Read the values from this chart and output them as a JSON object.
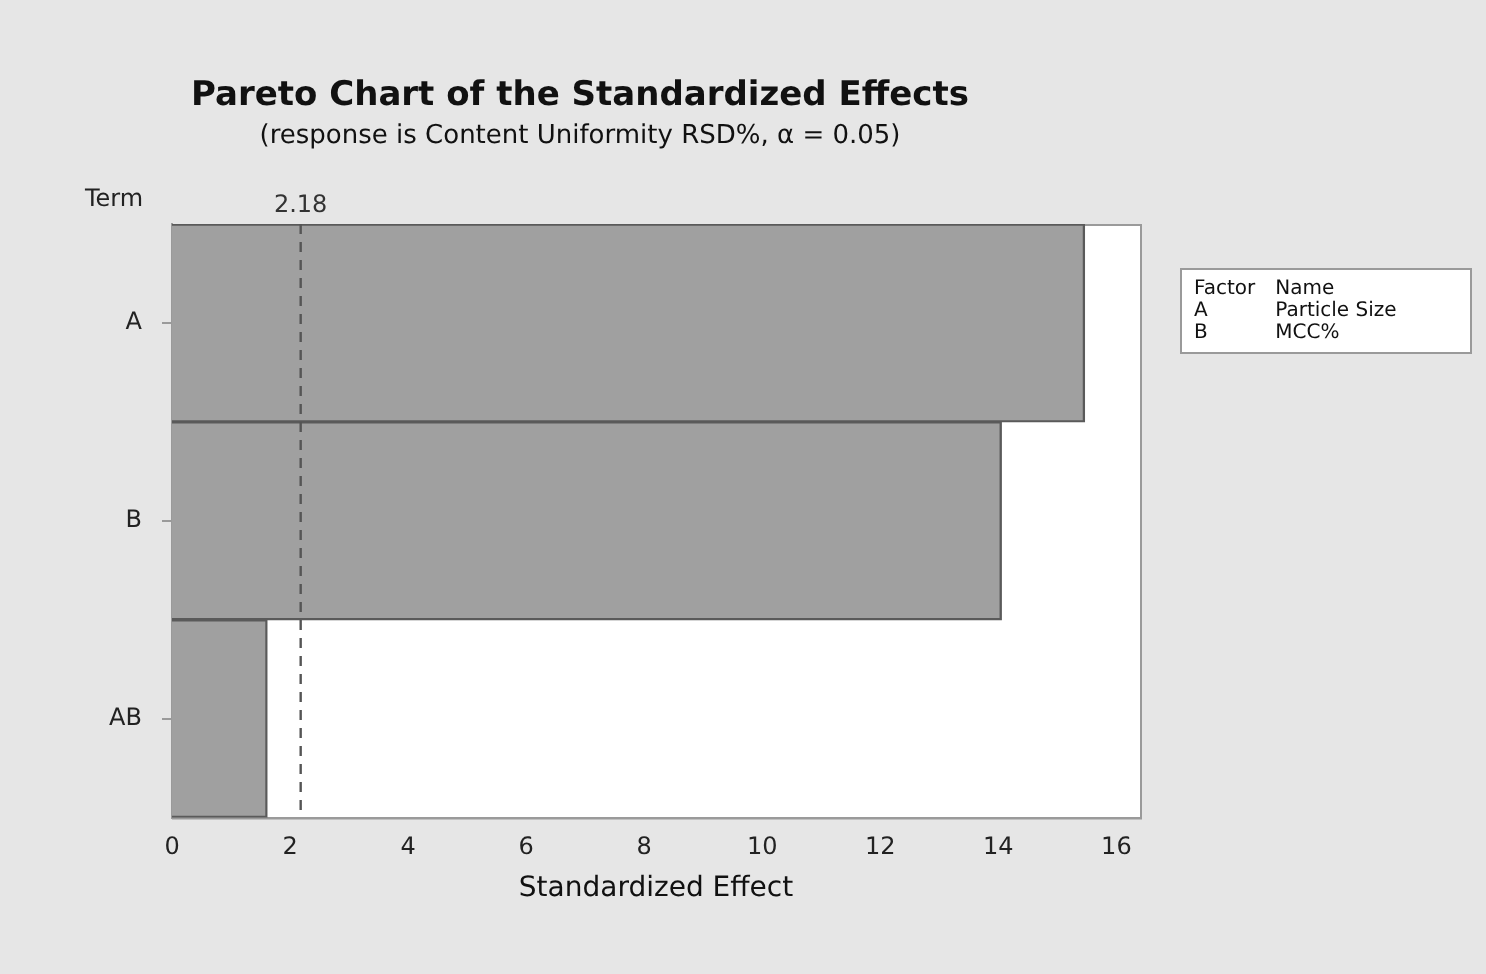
{
  "chart_data": {
    "type": "bar",
    "orientation": "horizontal",
    "title": "Pareto Chart of the Standardized Effects",
    "subtitle": "(response is Content Uniformity RSD%, α = 0.05)",
    "xlabel": "Standardized Effect",
    "ylabel": "Term",
    "categories": [
      "A",
      "B",
      "AB"
    ],
    "values": [
      15.46,
      14.05,
      1.61
    ],
    "color": "#a0a0a0",
    "xlim": [
      0,
      16.4
    ],
    "xticks": [
      0,
      2,
      4,
      6,
      8,
      10,
      12,
      14,
      16
    ],
    "grid": false,
    "legend": false,
    "ref_lines": [
      {
        "axis": "x",
        "value": 2.18,
        "label": "2.18",
        "line_style": "dashed",
        "color": "#555555"
      }
    ],
    "annotations": [
      "Factor",
      "Name",
      "A",
      "Particle Size",
      "B",
      "MCC%"
    ]
  }
}
